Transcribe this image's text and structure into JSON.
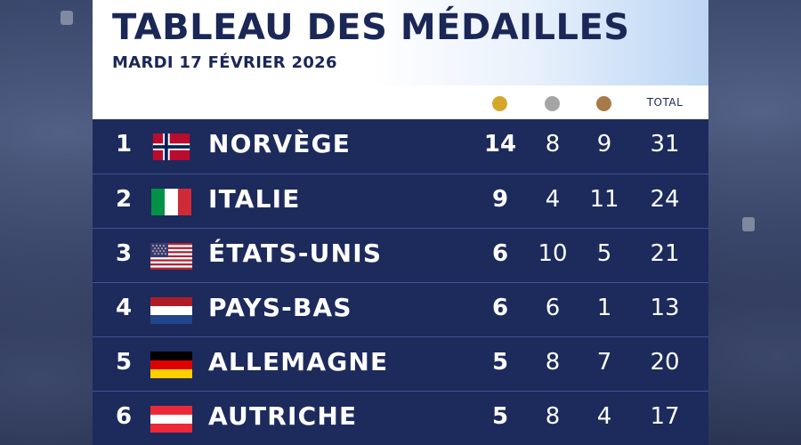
{
  "header": {
    "title": "TABLEAU DES MÉDAILLES",
    "date": "MARDI 17 FÉVRIER 2026"
  },
  "columns": {
    "gold_icon": "gold-medal-dot",
    "silver_icon": "silver-medal-dot",
    "bronze_icon": "bronze-medal-dot",
    "total_label": "TOTAL"
  },
  "colors": {
    "gold": "#d4a72c",
    "silver": "#a5a5a5",
    "bronze": "#a87a4a",
    "row_bg": "#1c2a5c",
    "title": "#1a2757"
  },
  "rows": [
    {
      "rank": "1",
      "country": "NORVÈGE",
      "flag": "norway-flag",
      "gold": "14",
      "silver": "8",
      "bronze": "9",
      "total": "31"
    },
    {
      "rank": "2",
      "country": "ITALIE",
      "flag": "italy-flag",
      "gold": "9",
      "silver": "4",
      "bronze": "11",
      "total": "24"
    },
    {
      "rank": "3",
      "country": "ÉTATS-UNIS",
      "flag": "usa-flag",
      "gold": "6",
      "silver": "10",
      "bronze": "5",
      "total": "21"
    },
    {
      "rank": "4",
      "country": "PAYS-BAS",
      "flag": "netherlands-flag",
      "gold": "6",
      "silver": "6",
      "bronze": "1",
      "total": "13"
    },
    {
      "rank": "5",
      "country": "ALLEMAGNE",
      "flag": "germany-flag",
      "gold": "5",
      "silver": "8",
      "bronze": "7",
      "total": "20"
    },
    {
      "rank": "6",
      "country": "AUTRICHE",
      "flag": "austria-flag",
      "gold": "5",
      "silver": "8",
      "bronze": "4",
      "total": "17"
    }
  ]
}
